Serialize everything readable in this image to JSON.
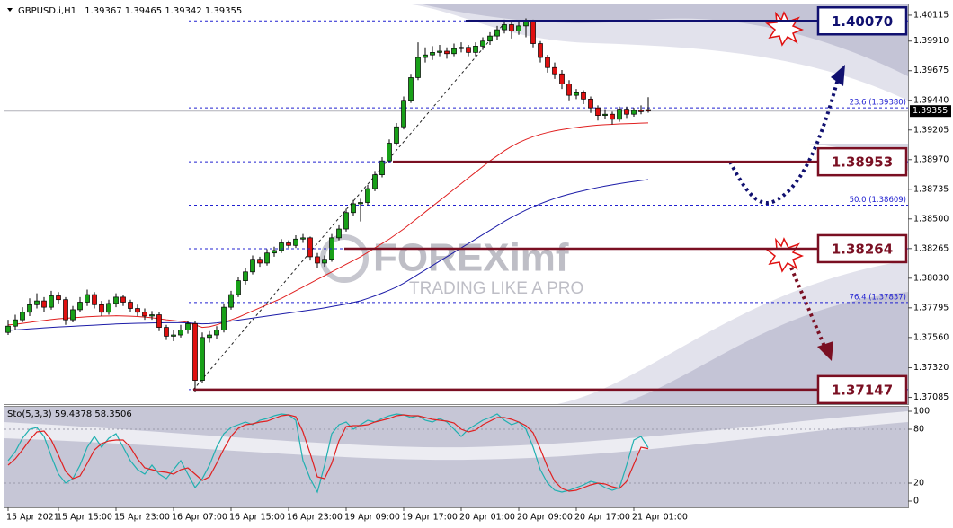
{
  "chart_data": {
    "type": "candlestick",
    "symbol": "GBPUSD.i,H1",
    "up_color": "#18a018",
    "down_color": "#e01010",
    "categories": [
      "15 Apr 2021",
      null,
      null,
      null,
      null,
      null,
      null,
      "15 Apr 15:00",
      null,
      null,
      null,
      null,
      null,
      null,
      null,
      "15 Apr 23:00",
      null,
      null,
      null,
      null,
      null,
      null,
      null,
      "16 Apr 07:00",
      null,
      null,
      null,
      null,
      null,
      null,
      null,
      "16 Apr 15:00",
      null,
      null,
      null,
      null,
      null,
      null,
      null,
      "16 Apr 23:00",
      null,
      null,
      null,
      null,
      null,
      null,
      null,
      "19 Apr 09:00",
      null,
      null,
      null,
      null,
      null,
      null,
      null,
      "19 Apr 17:00",
      null,
      null,
      null,
      null,
      null,
      null,
      null,
      "20 Apr 01:00",
      null,
      null,
      null,
      null,
      null,
      null,
      null,
      "20 Apr 09:00",
      null,
      null,
      null,
      null,
      null,
      null,
      null,
      "20 Apr 17:00",
      null,
      null,
      null,
      null,
      null,
      null,
      null,
      "21 Apr 01:00",
      null,
      null
    ],
    "ohlc": [
      [
        1.376,
        1.377,
        1.3758,
        1.3765
      ],
      [
        1.3765,
        1.3774,
        1.3762,
        1.377
      ],
      [
        1.377,
        1.378,
        1.3768,
        1.3776
      ],
      [
        1.3776,
        1.3787,
        1.3773,
        1.3782
      ],
      [
        1.3782,
        1.3791,
        1.3779,
        1.3785
      ],
      [
        1.3785,
        1.3788,
        1.3776,
        1.378
      ],
      [
        1.378,
        1.3793,
        1.3778,
        1.3789
      ],
      [
        1.3789,
        1.3792,
        1.3783,
        1.3786
      ],
      [
        1.3786,
        1.3788,
        1.3766,
        1.377
      ],
      [
        1.377,
        1.3781,
        1.3768,
        1.3778
      ],
      [
        1.3778,
        1.3788,
        1.3776,
        1.3784
      ],
      [
        1.3784,
        1.3794,
        1.3781,
        1.379
      ],
      [
        1.379,
        1.3792,
        1.3779,
        1.3782
      ],
      [
        1.3782,
        1.3785,
        1.3773,
        1.3776
      ],
      [
        1.3776,
        1.3786,
        1.3774,
        1.3783
      ],
      [
        1.3783,
        1.3791,
        1.378,
        1.3788
      ],
      [
        1.3788,
        1.379,
        1.3781,
        1.3784
      ],
      [
        1.3784,
        1.3786,
        1.3776,
        1.3779
      ],
      [
        1.3779,
        1.3782,
        1.3773,
        1.3776
      ],
      [
        1.3776,
        1.3779,
        1.377,
        1.3773
      ],
      [
        1.3773,
        1.3777,
        1.377,
        1.3774
      ],
      [
        1.3774,
        1.3776,
        1.3761,
        1.3764
      ],
      [
        1.3764,
        1.3766,
        1.3754,
        1.3757
      ],
      [
        1.3757,
        1.3762,
        1.3753,
        1.3758
      ],
      [
        1.3758,
        1.3766,
        1.3756,
        1.3762
      ],
      [
        1.3762,
        1.3769,
        1.3759,
        1.3767
      ],
      [
        1.3767,
        1.3769,
        1.37132,
        1.3722
      ],
      [
        1.3722,
        1.376,
        1.372,
        1.3756
      ],
      [
        1.3756,
        1.3761,
        1.3752,
        1.3758
      ],
      [
        1.3758,
        1.3765,
        1.3755,
        1.3762
      ],
      [
        1.3762,
        1.3783,
        1.376,
        1.378
      ],
      [
        1.378,
        1.3793,
        1.3778,
        1.379
      ],
      [
        1.379,
        1.3804,
        1.3788,
        1.3801
      ],
      [
        1.3801,
        1.3811,
        1.3798,
        1.3808
      ],
      [
        1.3808,
        1.3821,
        1.3806,
        1.3818
      ],
      [
        1.3818,
        1.382,
        1.3812,
        1.3815
      ],
      [
        1.3815,
        1.3826,
        1.3813,
        1.3823
      ],
      [
        1.3823,
        1.3828,
        1.382,
        1.3825
      ],
      [
        1.3825,
        1.3834,
        1.3823,
        1.3831
      ],
      [
        1.3831,
        1.3833,
        1.3827,
        1.3829
      ],
      [
        1.3829,
        1.3837,
        1.3827,
        1.3834
      ],
      [
        1.3834,
        1.3838,
        1.3831,
        1.3835
      ],
      [
        1.3835,
        1.3836,
        1.3817,
        1.382
      ],
      [
        1.382,
        1.3823,
        1.3811,
        1.3815
      ],
      [
        1.3815,
        1.3821,
        1.3812,
        1.3818
      ],
      [
        1.3818,
        1.3838,
        1.3816,
        1.3835
      ],
      [
        1.3835,
        1.3845,
        1.3833,
        1.3842
      ],
      [
        1.3842,
        1.3858,
        1.384,
        1.3855
      ],
      [
        1.3855,
        1.3865,
        1.3852,
        1.3862
      ],
      [
        1.3862,
        1.3866,
        1.3848,
        1.3863
      ],
      [
        1.3863,
        1.3877,
        1.3861,
        1.3874
      ],
      [
        1.3874,
        1.3888,
        1.3872,
        1.3885
      ],
      [
        1.3885,
        1.3899,
        1.3883,
        1.3896
      ],
      [
        1.3896,
        1.3913,
        1.3894,
        1.391
      ],
      [
        1.391,
        1.3926,
        1.3908,
        1.3923
      ],
      [
        1.3923,
        1.3947,
        1.3921,
        1.3944
      ],
      [
        1.3944,
        1.3965,
        1.3942,
        1.3962
      ],
      [
        1.3962,
        1.399,
        1.396,
        1.3978
      ],
      [
        1.3978,
        1.3986,
        1.3974,
        1.398
      ],
      [
        1.398,
        1.3987,
        1.3976,
        1.3982
      ],
      [
        1.3982,
        1.3988,
        1.3979,
        1.3983
      ],
      [
        1.3983,
        1.3986,
        1.3977,
        1.3981
      ],
      [
        1.3981,
        1.3989,
        1.3979,
        1.3985
      ],
      [
        1.3985,
        1.399,
        1.3982,
        1.3986
      ],
      [
        1.3986,
        1.3988,
        1.3979,
        1.3982
      ],
      [
        1.3982,
        1.399,
        1.3979,
        1.3987
      ],
      [
        1.3987,
        1.3994,
        1.3984,
        1.3991
      ],
      [
        1.3991,
        1.3998,
        1.3988,
        1.3995
      ],
      [
        1.3995,
        1.4003,
        1.3992,
        1.4
      ],
      [
        1.4,
        1.4008,
        1.3997,
        1.4004
      ],
      [
        1.4004,
        1.4006,
        1.3993,
        1.3999
      ],
      [
        1.3999,
        1.4007,
        1.3996,
        1.4003
      ],
      [
        1.4003,
        1.4009,
        1.3994,
        1.4007
      ],
      [
        1.4007,
        1.4008,
        1.3986,
        1.3989
      ],
      [
        1.3989,
        1.3991,
        1.3974,
        1.3978
      ],
      [
        1.3978,
        1.398,
        1.3966,
        1.397
      ],
      [
        1.397,
        1.3974,
        1.3961,
        1.3965
      ],
      [
        1.3965,
        1.3968,
        1.3953,
        1.3957
      ],
      [
        1.3957,
        1.396,
        1.3944,
        1.3948
      ],
      [
        1.3948,
        1.3953,
        1.3945,
        1.395
      ],
      [
        1.395,
        1.3952,
        1.3941,
        1.3945
      ],
      [
        1.3945,
        1.3947,
        1.3934,
        1.3938
      ],
      [
        1.3938,
        1.394,
        1.3928,
        1.3932
      ],
      [
        1.3932,
        1.3937,
        1.3929,
        1.3933
      ],
      [
        1.3933,
        1.3935,
        1.3925,
        1.3929
      ],
      [
        1.3929,
        1.3939,
        1.3927,
        1.3937
      ],
      [
        1.3937,
        1.3939,
        1.393,
        1.3933
      ],
      [
        1.3933,
        1.3938,
        1.3931,
        1.3936
      ],
      [
        1.3936,
        1.394,
        1.3933,
        1.3935
      ],
      [
        1.39367,
        1.39465,
        1.39342,
        1.39355
      ]
    ],
    "moving_averages": [
      {
        "color": "#e02020",
        "values": [
          1.37659,
          1.37665,
          1.37672,
          1.3768,
          1.37688,
          1.37695,
          1.37702,
          1.37708,
          1.37712,
          1.37716,
          1.3772,
          1.37724,
          1.37727,
          1.3773,
          1.37731,
          1.37732,
          1.37731,
          1.37729,
          1.37726,
          1.37722,
          1.37716,
          1.37708,
          1.377,
          1.37694,
          1.37688,
          1.3768,
          1.3766,
          1.3764,
          1.37645,
          1.3766,
          1.3768,
          1.377,
          1.3772,
          1.37745,
          1.3777,
          1.37795,
          1.3782,
          1.37845,
          1.3787,
          1.379,
          1.3793,
          1.3796,
          1.3799,
          1.3802,
          1.3805,
          1.3808,
          1.3811,
          1.3814,
          1.3817,
          1.382,
          1.38235,
          1.3827,
          1.38305,
          1.3834,
          1.3838,
          1.3842,
          1.38465,
          1.3851,
          1.38555,
          1.386,
          1.38645,
          1.3869,
          1.38735,
          1.3878,
          1.38825,
          1.3887,
          1.38915,
          1.3896,
          1.39,
          1.3904,
          1.39075,
          1.39105,
          1.3913,
          1.39152,
          1.3917,
          1.39185,
          1.39198,
          1.39208,
          1.39217,
          1.39225,
          1.39232,
          1.39238,
          1.39243,
          1.39247,
          1.3925,
          1.39253,
          1.39255,
          1.39257,
          1.39259,
          1.39261
        ]
      },
      {
        "color": "#1c1ca8",
        "values": [
          1.37616,
          1.3762,
          1.37624,
          1.37628,
          1.37632,
          1.37636,
          1.3764,
          1.37643,
          1.37646,
          1.37649,
          1.37652,
          1.37655,
          1.37658,
          1.37661,
          1.37664,
          1.37667,
          1.37669,
          1.37671,
          1.37673,
          1.37674,
          1.37675,
          1.37676,
          1.37677,
          1.37677,
          1.37677,
          1.37676,
          1.37672,
          1.37668,
          1.3767,
          1.37675,
          1.37682,
          1.3769,
          1.37698,
          1.37706,
          1.37714,
          1.37722,
          1.3773,
          1.37738,
          1.37746,
          1.37754,
          1.37762,
          1.3777,
          1.37778,
          1.37786,
          1.37795,
          1.37805,
          1.37815,
          1.37826,
          1.37838,
          1.37851,
          1.3787,
          1.3789,
          1.37912,
          1.37935,
          1.3796,
          1.3799,
          1.38025,
          1.3806,
          1.38095,
          1.3813,
          1.38165,
          1.382,
          1.38235,
          1.3827,
          1.38305,
          1.3834,
          1.38375,
          1.3841,
          1.38445,
          1.3848,
          1.38512,
          1.38542,
          1.3857,
          1.38596,
          1.3862,
          1.38642,
          1.38662,
          1.3868,
          1.38696,
          1.3871,
          1.38724,
          1.38737,
          1.38749,
          1.3876,
          1.3877,
          1.3878,
          1.38789,
          1.38797,
          1.38805,
          1.38812
        ]
      }
    ],
    "ylim": [
      1.37032,
      1.402
    ],
    "yticks": [
      1.40115,
      {
        "value": 1.3991,
        "label": "1.39910"
      },
      1.39675,
      {
        "value": 1.3944,
        "label": "1.39440"
      },
      1.39205,
      {
        "value": 1.3897,
        "label": "1.38970"
      },
      1.38735,
      {
        "value": 1.385,
        "label": "1.38500"
      },
      1.38265,
      {
        "value": 1.3803,
        "label": "1.38030"
      },
      1.37795,
      {
        "value": 1.3756,
        "label": "1.37560"
      },
      {
        "value": 1.3732,
        "label": "1.37320"
      },
      1.37085
    ],
    "levels": {
      "colors": [
        "#101070",
        "#7a0f22",
        "#7a0f22",
        "#7a0f22"
      ],
      "values": [
        1.4007,
        1.38953,
        1.38264,
        1.37147
      ],
      "value_labels": [
        "1.40070",
        "1.38953",
        "1.38264",
        "1.37147"
      ]
    },
    "fib_levels": {
      "color": "#2020d0",
      "values": [
        1.3938,
        1.38609,
        1.37837
      ],
      "value_labels": [
        "23.6 (1.39380)",
        "50.0 (1.38609)",
        "76.4 (1.37837)"
      ]
    },
    "watermark": {
      "title": "FOREXimf",
      "tagline": "TRADING LIKE A PRO"
    },
    "stochastic": {
      "type": "line",
      "label": "Sto(5,3,3)",
      "ylim": [
        -7,
        105
      ],
      "yticks": [
        100,
        80,
        20,
        0
      ],
      "series": [
        {
          "color": "#20b0b0",
          "values": [
            45,
            55,
            70,
            80,
            82,
            72,
            50,
            30,
            20,
            25,
            40,
            60,
            72,
            60,
            70,
            75,
            60,
            45,
            35,
            30,
            40,
            30,
            25,
            35,
            45,
            30,
            15,
            25,
            40,
            60,
            75,
            82,
            85,
            88,
            85,
            90,
            92,
            95,
            97,
            96,
            90,
            45,
            25,
            10,
            40,
            75,
            85,
            88,
            80,
            85,
            90,
            88,
            92,
            95,
            97,
            96,
            93,
            95,
            90,
            88,
            92,
            88,
            80,
            72,
            80,
            85,
            90,
            93,
            97,
            90,
            85,
            88,
            80,
            60,
            35,
            20,
            12,
            10,
            12,
            15,
            18,
            22,
            20,
            15,
            12,
            15,
            40,
            68,
            72,
            59.4378
          ]
        },
        {
          "color": "#e02020",
          "values": [
            40,
            47,
            57,
            68,
            77,
            78,
            68,
            51,
            33,
            25,
            28,
            42,
            57,
            64,
            67,
            68,
            68,
            60,
            47,
            37,
            35,
            33,
            32,
            30,
            35,
            37,
            30,
            23,
            27,
            42,
            58,
            72,
            81,
            85,
            86,
            88,
            89,
            92,
            95,
            96,
            94,
            77,
            53,
            27,
            25,
            42,
            67,
            83,
            84,
            84,
            85,
            88,
            90,
            92,
            95,
            96,
            95,
            95,
            93,
            91,
            90,
            89,
            87,
            80,
            77,
            79,
            85,
            89,
            93,
            93,
            91,
            88,
            84,
            76,
            58,
            38,
            22,
            14,
            11,
            12,
            15,
            18,
            20,
            19,
            16,
            14,
            22,
            41,
            60,
            58.3506
          ]
        }
      ]
    }
  }
}
